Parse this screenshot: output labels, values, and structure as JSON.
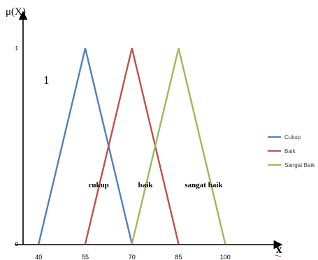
{
  "chart_data": {
    "type": "line",
    "ylabel": "μ(X)",
    "xlabel": "x",
    "big_label": "1",
    "x_ticks": [
      40,
      55,
      70,
      85,
      100
    ],
    "y_ticks": [
      {
        "label": "0",
        "value": 0
      },
      {
        "label": "1",
        "value": 1
      }
    ],
    "xlim": [
      35,
      114
    ],
    "ylim": [
      0,
      1
    ],
    "legend_position": "right",
    "series": [
      {
        "name": "Cukup",
        "color": "#4f81bd",
        "x": [
          40,
          55,
          70
        ],
        "y": [
          0,
          1,
          0
        ]
      },
      {
        "name": "Baik",
        "color": "#c0504d",
        "x": [
          55,
          70,
          85
        ],
        "y": [
          0,
          1,
          0
        ]
      },
      {
        "name": "Sangat Baik",
        "color": "#9bbb59",
        "x": [
          70,
          85,
          100
        ],
        "y": [
          0,
          1,
          0
        ]
      }
    ],
    "region_labels": [
      {
        "text": "cukup",
        "x": 56,
        "y": 0.3
      },
      {
        "text": "baik",
        "x": 72,
        "y": 0.3
      },
      {
        "text": "sangat baik",
        "x": 87,
        "y": 0.3
      }
    ]
  }
}
